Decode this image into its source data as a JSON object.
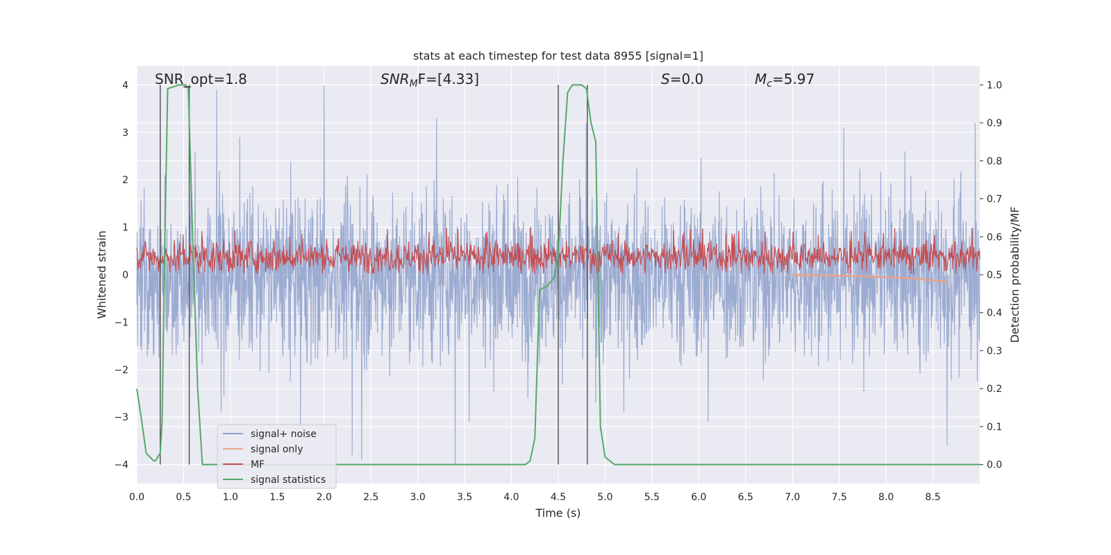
{
  "chart_data": {
    "type": "line",
    "title": "stats at each timestep for test data 8955 [signal=1]",
    "xlabel": "Time (s)",
    "ylabel": "Whitened strain",
    "y2label": "Detection probability/MF",
    "xlim": [
      0.0,
      9.0
    ],
    "ylim": [
      -4.4,
      4.4
    ],
    "y2lim": [
      -0.05,
      1.05
    ],
    "x_ticks": [
      "0.0",
      "0.5",
      "1.0",
      "1.5",
      "2.0",
      "2.5",
      "3.0",
      "3.5",
      "4.0",
      "4.5",
      "5.0",
      "5.5",
      "6.0",
      "6.5",
      "7.0",
      "7.5",
      "8.0",
      "8.5"
    ],
    "y_ticks": [
      "4",
      "3",
      "2",
      "1",
      "0",
      "−1",
      "−2",
      "−3",
      "−4"
    ],
    "y2_ticks": [
      "1.0",
      "0.9",
      "0.8",
      "0.7",
      "0.6",
      "0.5",
      "0.4",
      "0.3",
      "0.2",
      "0.1",
      "0.0"
    ],
    "grid": true,
    "legend_position": "lower-left",
    "annotations": {
      "snr_opt": "SNR_opt=1.8",
      "snr_mf_sym": "SNR",
      "snr_mf_sub": "M",
      "snr_mf_rest": "F=[4.33]",
      "s_sym": "S",
      "s_rest": "=0.0",
      "mc_sym": "M",
      "mc_sub": "c",
      "mc_rest": "=5.97"
    },
    "series": [
      {
        "name": "signal+ noise",
        "color": "#8da0cb",
        "note": "noise envelope approx ±2 with spikes to ±4",
        "spikes_pos": [
          [
            0.85,
            3.9
          ],
          [
            2.0,
            4.0
          ],
          [
            1.75,
            2.8
          ],
          [
            3.2,
            3.3
          ],
          [
            6.1,
            3.4
          ],
          [
            7.55,
            3.1
          ],
          [
            1.1,
            2.9
          ],
          [
            8.95,
            3.2
          ],
          [
            4.8,
            3.2
          ],
          [
            0.3,
            2.1
          ]
        ],
        "spikes_neg": [
          [
            3.4,
            -4.0
          ],
          [
            2.4,
            -3.9
          ],
          [
            2.3,
            -3.8
          ],
          [
            8.65,
            -3.6
          ],
          [
            1.75,
            -3.2
          ],
          [
            3.55,
            -3.1
          ],
          [
            0.9,
            -2.9
          ],
          [
            6.1,
            -3.1
          ],
          [
            4.9,
            -2.7
          ],
          [
            5.2,
            -2.9
          ]
        ]
      },
      {
        "name": "signal only",
        "color": "#e8a48a",
        "x": [
          7.0,
          7.5,
          8.0,
          8.3,
          8.5,
          8.65
        ],
        "y": [
          0.0,
          -0.02,
          -0.05,
          -0.08,
          -0.12,
          -0.15
        ]
      },
      {
        "name": "MF",
        "color": "#c44e52",
        "note": "band approx 0 to 0.8 with peaks near 1.0"
      },
      {
        "name": "signal statistics",
        "color": "#55a868",
        "axis": "right",
        "x": [
          0.0,
          0.05,
          0.1,
          0.18,
          0.2,
          0.25,
          0.27,
          0.3,
          0.33,
          0.45,
          0.52,
          0.55,
          0.6,
          0.65,
          0.7,
          0.75,
          1.0,
          2.0,
          3.0,
          4.0,
          4.1,
          4.15,
          4.2,
          4.25,
          4.3,
          4.38,
          4.45,
          4.5,
          4.55,
          4.6,
          4.65,
          4.7,
          4.75,
          4.8,
          4.85,
          4.9,
          4.95,
          5.0,
          5.05,
          5.1,
          5.2,
          6.0,
          7.0,
          8.0,
          9.0
        ],
        "y": [
          0.2,
          0.12,
          0.03,
          0.01,
          0.01,
          0.03,
          0.11,
          0.6,
          0.99,
          1.0,
          1.0,
          0.99,
          0.57,
          0.2,
          0.0,
          0.0,
          0.0,
          0.0,
          0.0,
          0.0,
          0.0,
          0.0,
          0.01,
          0.07,
          0.46,
          0.47,
          0.49,
          0.55,
          0.8,
          0.98,
          1.0,
          1.0,
          1.0,
          0.99,
          0.9,
          0.85,
          0.1,
          0.02,
          0.01,
          0.0,
          0.0,
          0.0,
          0.0,
          0.0,
          0.0
        ]
      }
    ],
    "vertical_lines": [
      0.25,
      0.56,
      4.5,
      4.81
    ],
    "legend": [
      "signal+ noise",
      "signal only",
      "MF",
      "signal statistics"
    ]
  }
}
